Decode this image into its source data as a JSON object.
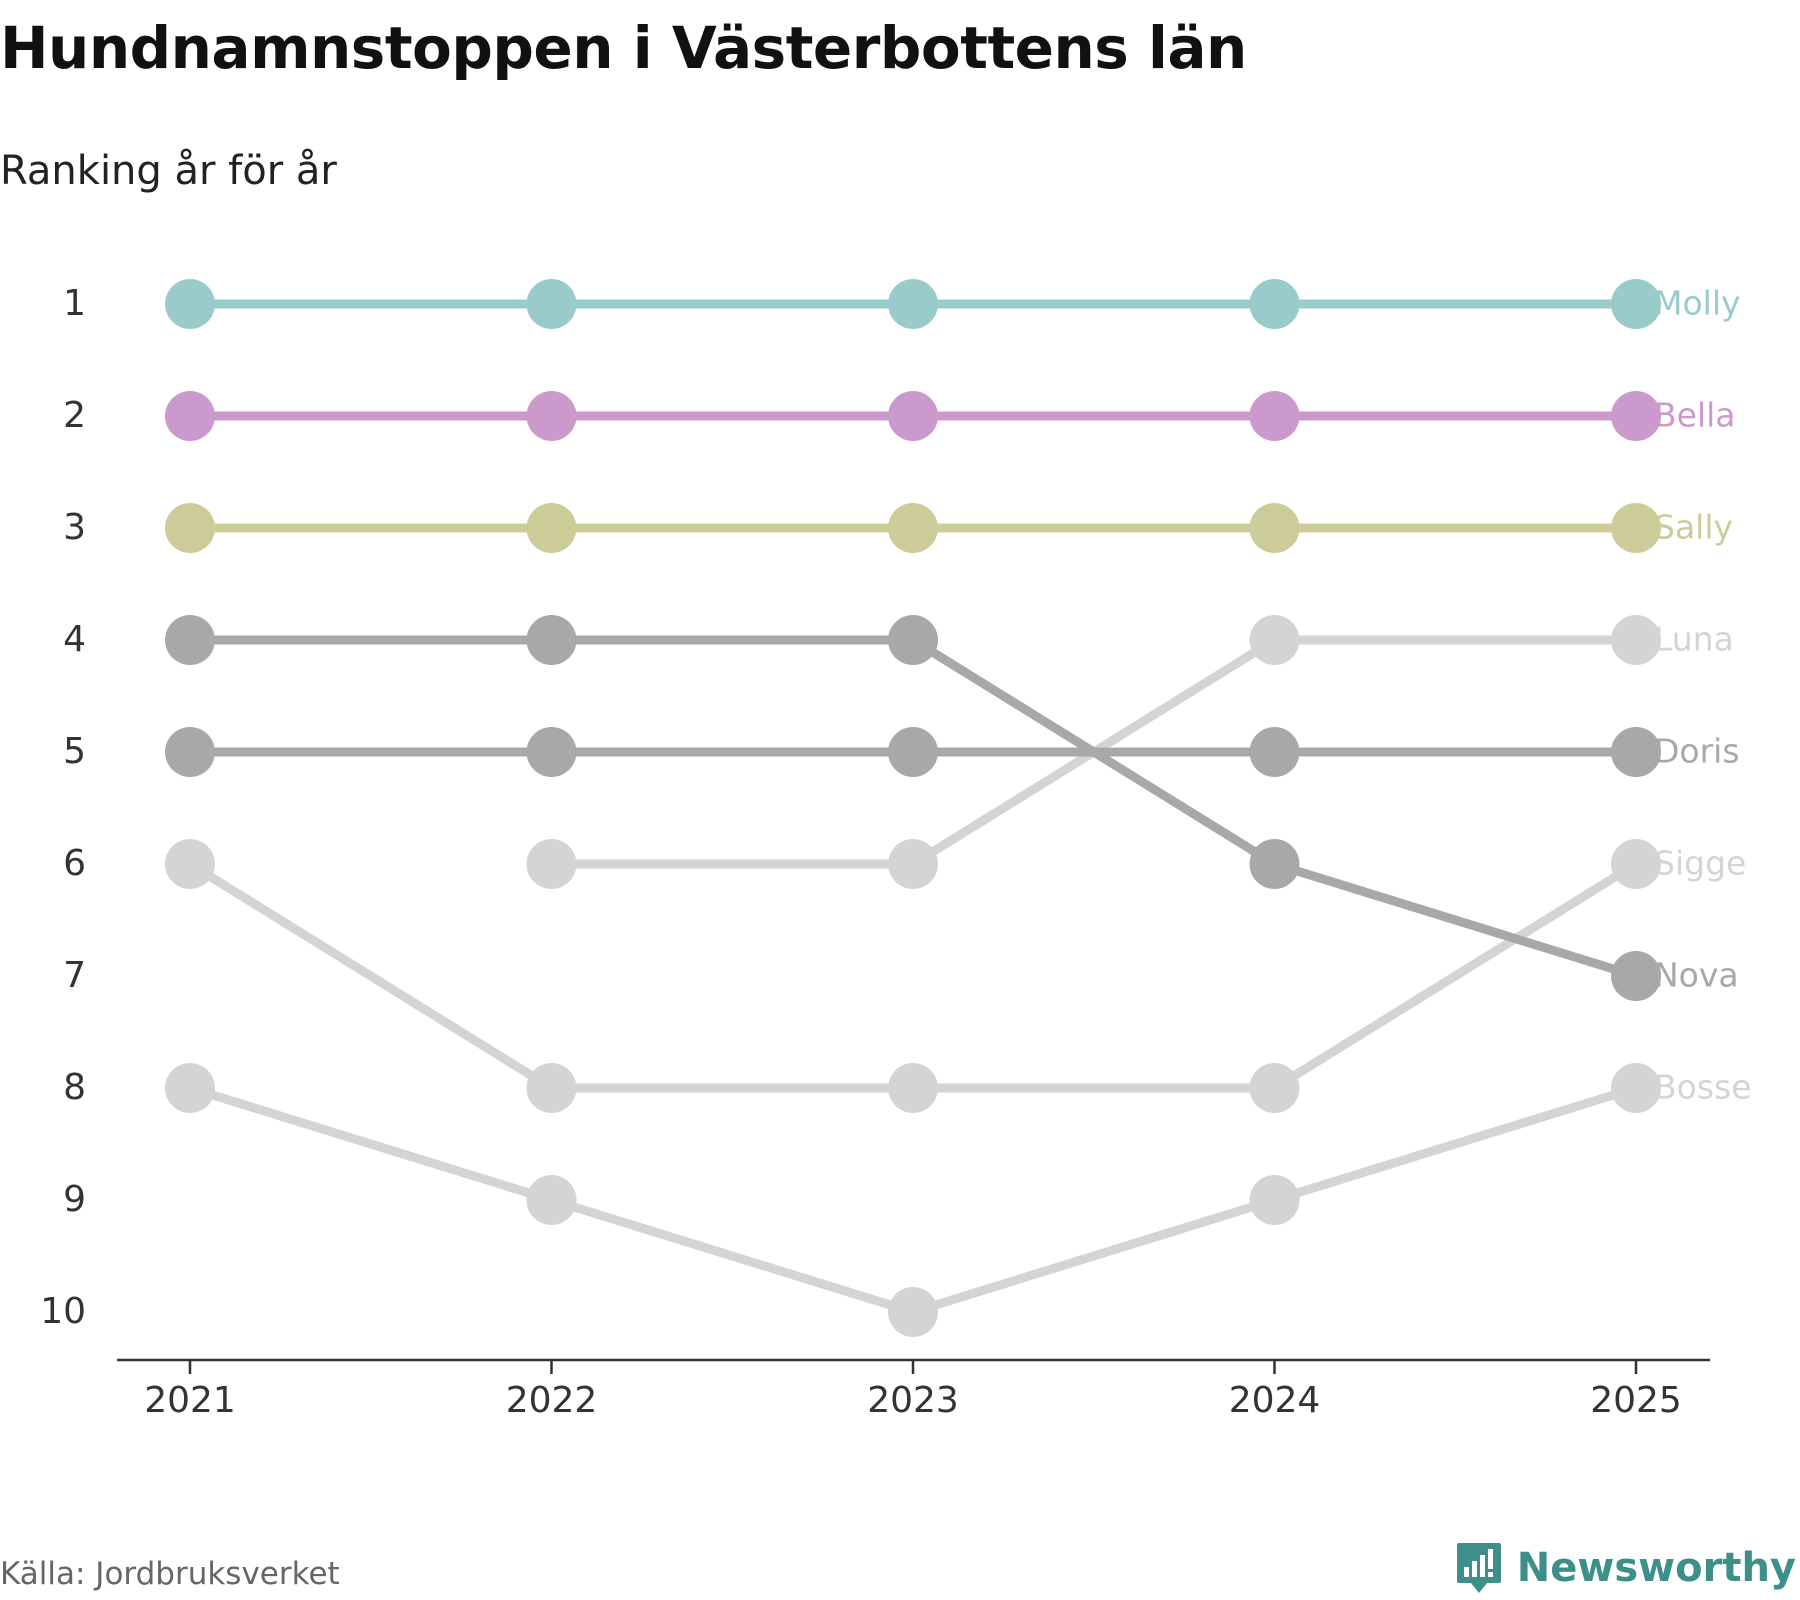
{
  "header": {
    "title": "Hundnamnstoppen i Västerbottens län",
    "subtitle": "Ranking år för år"
  },
  "footer": {
    "source": "Källa: Jordbruksverket",
    "brand": "Newsworthy",
    "brand_color": "#3d8f8a",
    "brand_icon": "bar-chart-speech-icon"
  },
  "chart_data": {
    "type": "line",
    "title": "Hundnamnstoppen i Västerbottens län",
    "subtitle": "Ranking år för år",
    "xlabel": "",
    "ylabel": "",
    "x": [
      "2021",
      "2022",
      "2023",
      "2024",
      "2025"
    ],
    "y_ticks": [
      "1",
      "2",
      "3",
      "4",
      "5",
      "6",
      "7",
      "8",
      "9",
      "10"
    ],
    "ylim": [
      1,
      10
    ],
    "y_inverted": true,
    "grid": false,
    "series": [
      {
        "name": "Molly",
        "values": [
          1,
          1,
          1,
          1,
          1
        ],
        "color": "#9acbcb"
      },
      {
        "name": "Bella",
        "values": [
          2,
          2,
          2,
          2,
          2
        ],
        "color": "#cc99cc"
      },
      {
        "name": "Sally",
        "values": [
          3,
          3,
          3,
          3,
          3
        ],
        "color": "#cccc99"
      },
      {
        "name": "Luna",
        "values": [
          null,
          6,
          6,
          4,
          4
        ],
        "color": "#d4d4d4"
      },
      {
        "name": "Doris",
        "values": [
          5,
          5,
          5,
          5,
          5
        ],
        "color": "#a8a8a8"
      },
      {
        "name": "Sigge",
        "values": [
          6,
          8,
          8,
          8,
          6
        ],
        "color": "#d4d4d4"
      },
      {
        "name": "Nova",
        "values": [
          4,
          4,
          4,
          6,
          7
        ],
        "color": "#a8a8a8"
      },
      {
        "name": "Bosse",
        "values": [
          8,
          9,
          10,
          9,
          8
        ],
        "color": "#d4d4d4"
      }
    ]
  }
}
